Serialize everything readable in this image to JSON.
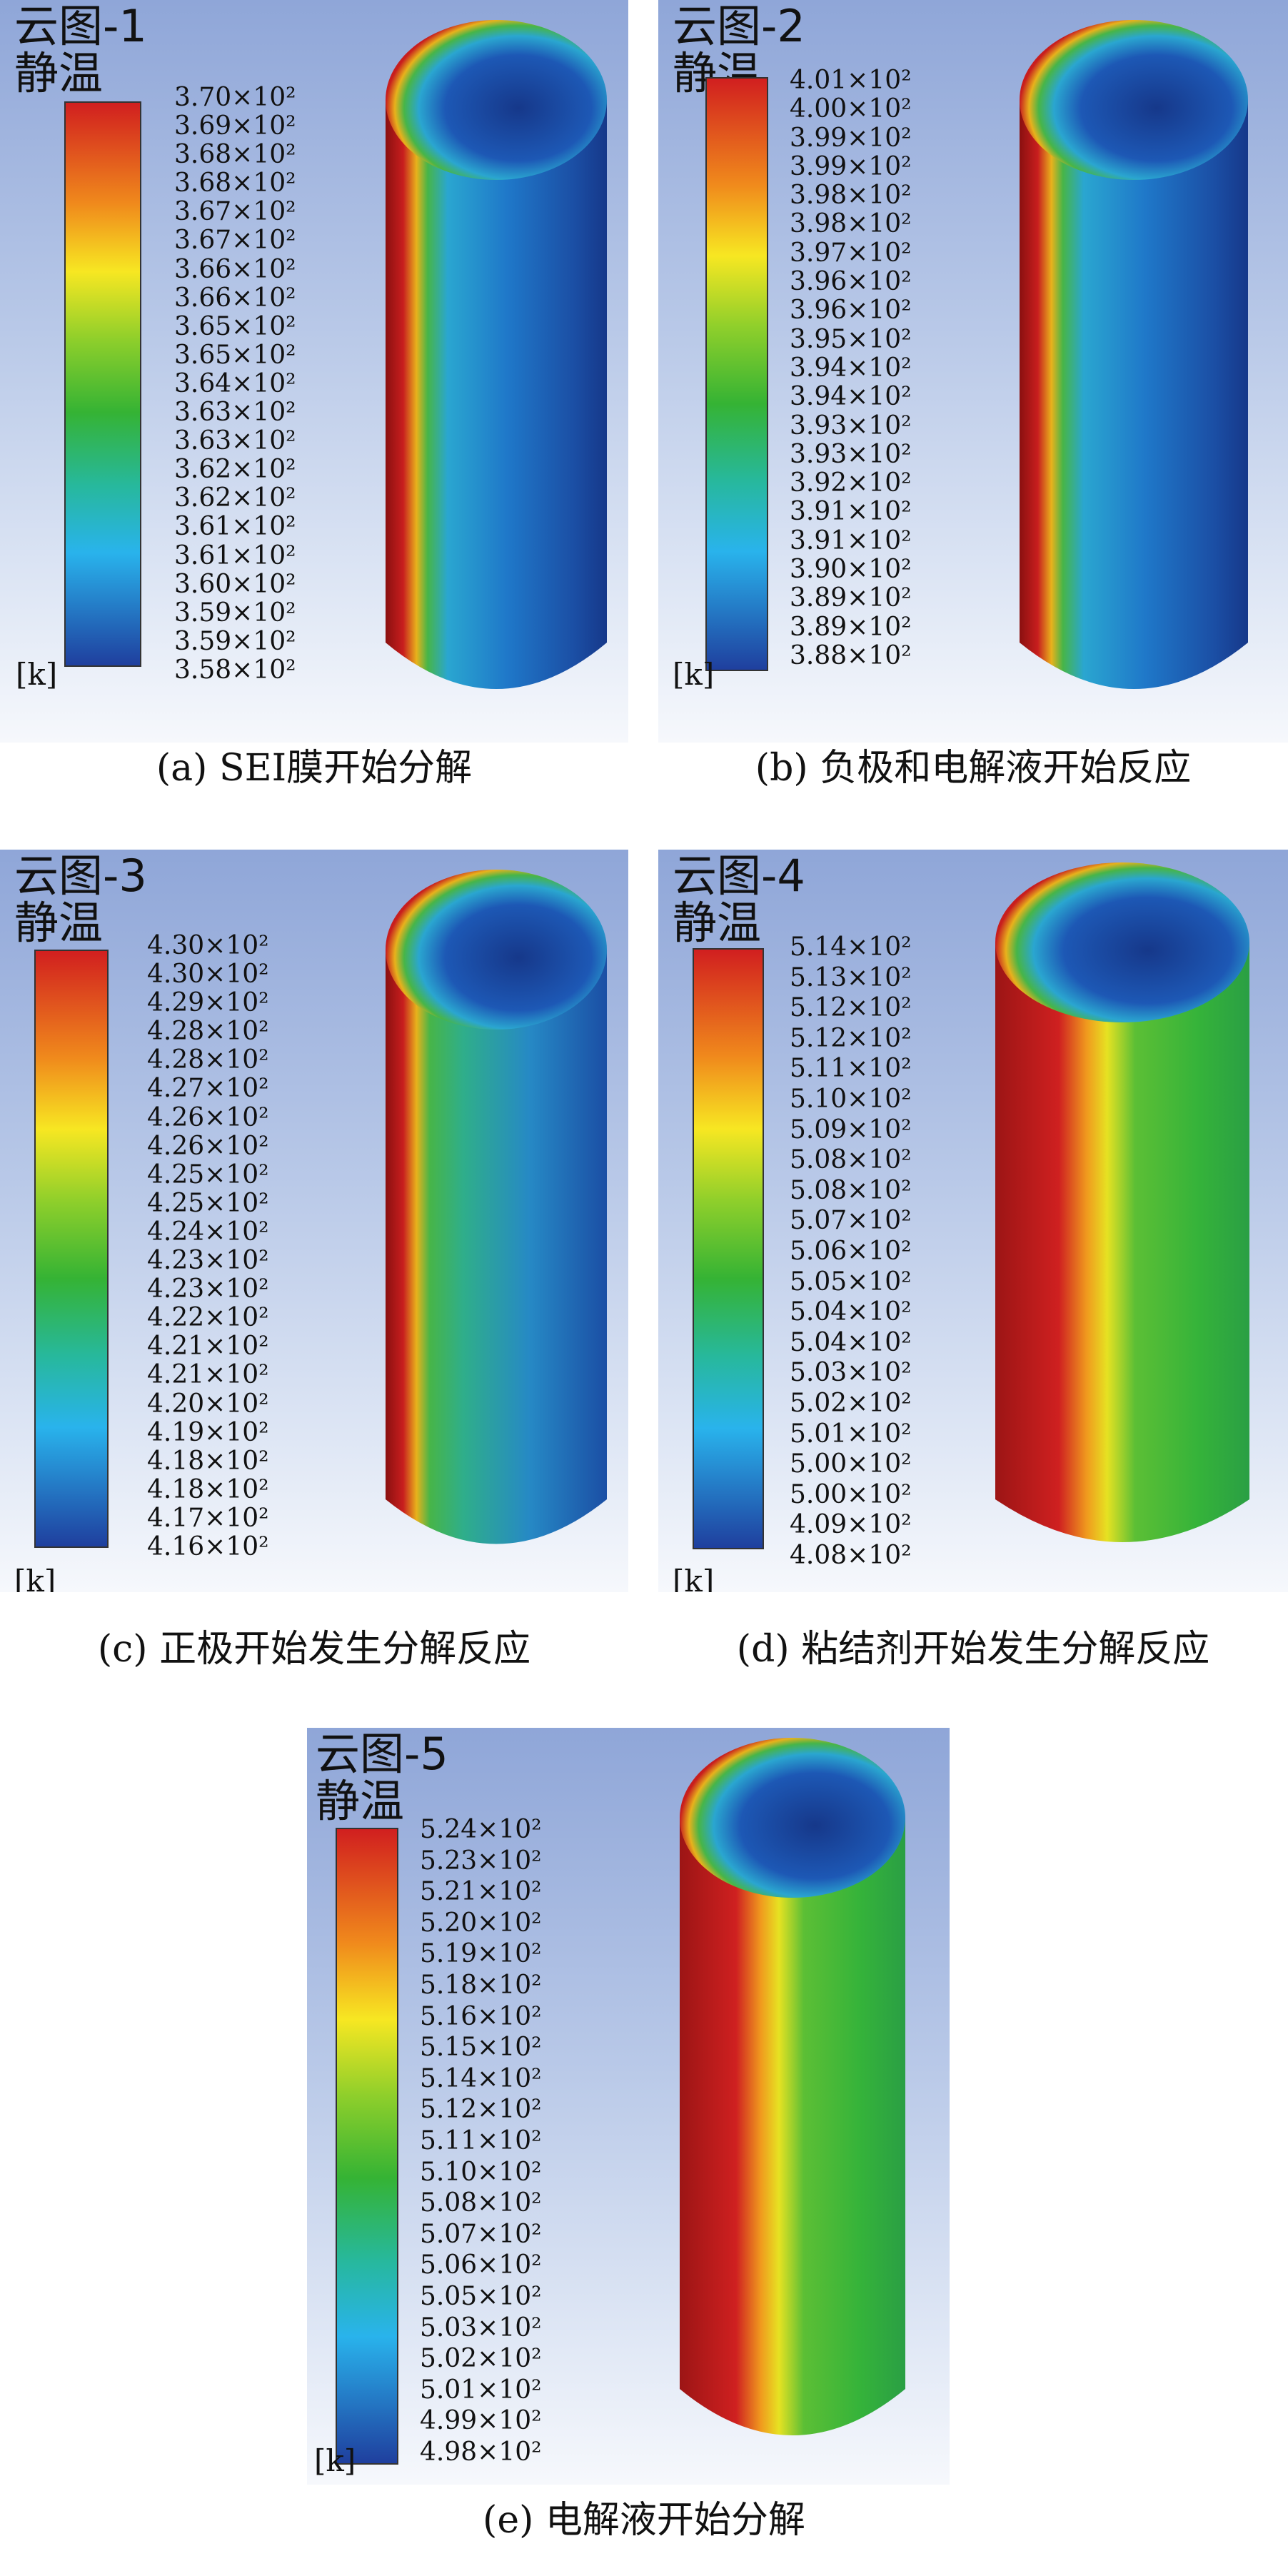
{
  "colors": {
    "high": "#d11f1f",
    "mid": "#35b334",
    "low": "#1f3f9e",
    "scale": [
      "#d11f1f",
      "#f08a1c",
      "#f7e722",
      "#8fcf2b",
      "#35b334",
      "#27b89c",
      "#29b3ec",
      "#1f3f9e"
    ]
  },
  "panels": [
    {
      "title": "云图-1",
      "variable": "静温",
      "unit": "[k]",
      "caption": "(a) SEI膜开始分解",
      "ticks": [
        "3.70×10²",
        "3.69×10²",
        "3.68×10²",
        "3.68×10²",
        "3.67×10²",
        "3.67×10²",
        "3.66×10²",
        "3.66×10²",
        "3.65×10²",
        "3.65×10²",
        "3.64×10²",
        "3.63×10²",
        "3.63×10²",
        "3.62×10²",
        "3.62×10²",
        "3.61×10²",
        "3.61×10²",
        "3.60×10²",
        "3.59×10²",
        "3.59×10²",
        "3.58×10²"
      ]
    },
    {
      "title": "云图-2",
      "variable": "静温",
      "unit": "[k]",
      "caption": "(b) 负极和电解液开始反应",
      "ticks": [
        "4.01×10²",
        "4.00×10²",
        "3.99×10²",
        "3.99×10²",
        "3.98×10²",
        "3.98×10²",
        "3.97×10²",
        "3.96×10²",
        "3.96×10²",
        "3.95×10²",
        "3.94×10²",
        "3.94×10²",
        "3.93×10²",
        "3.93×10²",
        "3.92×10²",
        "3.91×10²",
        "3.91×10²",
        "3.90×10²",
        "3.89×10²",
        "3.89×10²",
        "3.88×10²"
      ]
    },
    {
      "title": "云图-3",
      "variable": "静温",
      "unit": "[k]",
      "caption": "(c) 正极开始发生分解反应",
      "ticks": [
        "4.30×10²",
        "4.30×10²",
        "4.29×10²",
        "4.28×10²",
        "4.28×10²",
        "4.27×10²",
        "4.26×10²",
        "4.26×10²",
        "4.25×10²",
        "4.25×10²",
        "4.24×10²",
        "4.23×10²",
        "4.23×10²",
        "4.22×10²",
        "4.21×10²",
        "4.21×10²",
        "4.20×10²",
        "4.19×10²",
        "4.18×10²",
        "4.18×10²",
        "4.17×10²",
        "4.16×10²"
      ]
    },
    {
      "title": "云图-4",
      "variable": "静温",
      "unit": "[k]",
      "caption": "(d) 粘结剂开始发生分解反应",
      "ticks": [
        "5.14×10²",
        "5.13×10²",
        "5.12×10²",
        "5.12×10²",
        "5.11×10²",
        "5.10×10²",
        "5.09×10²",
        "5.08×10²",
        "5.08×10²",
        "5.07×10²",
        "5.06×10²",
        "5.05×10²",
        "5.04×10²",
        "5.04×10²",
        "5.03×10²",
        "5.02×10²",
        "5.01×10²",
        "5.00×10²",
        "5.00×10²",
        "4.09×10²",
        "4.08×10²"
      ]
    },
    {
      "title": "云图-5",
      "variable": "静温",
      "unit": "[k]",
      "caption": "(e) 电解液开始分解",
      "ticks": [
        "5.24×10²",
        "5.23×10²",
        "5.21×10²",
        "5.20×10²",
        "5.19×10²",
        "5.18×10²",
        "5.16×10²",
        "5.15×10²",
        "5.14×10²",
        "5.12×10²",
        "5.11×10²",
        "5.10×10²",
        "5.08×10²",
        "5.07×10²",
        "5.06×10²",
        "5.05×10²",
        "5.03×10²",
        "5.02×10²",
        "5.01×10²",
        "4.99×10²",
        "4.98×10²"
      ]
    }
  ]
}
